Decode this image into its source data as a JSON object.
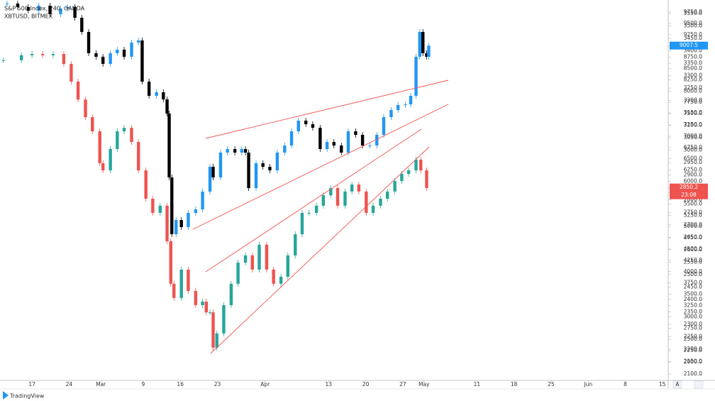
{
  "chart_data": {
    "type": "candlestick",
    "legend_lines": [
      "S&P 500 Index, 240, OANDA",
      "XBTUSD, BITMEX"
    ],
    "xlim": [
      -6.04,
      120.1
    ],
    "xticks": [
      {
        "value": 0,
        "label": "17"
      },
      {
        "value": 7,
        "label": "24"
      },
      {
        "value": 13,
        "label": "Mar"
      },
      {
        "value": 21,
        "label": "9"
      },
      {
        "value": 28,
        "label": "16"
      },
      {
        "value": 35,
        "label": "23"
      },
      {
        "value": 44,
        "label": "Apr"
      },
      {
        "value": 56,
        "label": "13"
      },
      {
        "value": 63,
        "label": "20"
      },
      {
        "value": 70,
        "label": "27"
      },
      {
        "value": 74,
        "label": "May"
      },
      {
        "value": 84,
        "label": "11"
      },
      {
        "value": 91,
        "label": "18"
      },
      {
        "value": 98,
        "label": "25"
      },
      {
        "value": 105,
        "label": "Jun"
      },
      {
        "value": 112,
        "label": "8"
      },
      {
        "value": 119,
        "label": "15"
      }
    ],
    "ylim": [
      2062.8,
      3604.2
    ],
    "yticks": [
      {
        "value": 3550,
        "label": "3550.0"
      },
      {
        "value": 3500,
        "label": "3500.0"
      },
      {
        "value": 3450,
        "label": "3450.0"
      },
      {
        "value": 3400,
        "label": "3400.0"
      },
      {
        "value": 3350,
        "label": "3350.0"
      },
      {
        "value": 3300,
        "label": "3300.0"
      },
      {
        "value": 3250,
        "label": "3250.0"
      },
      {
        "value": 3200,
        "label": "3200.0"
      },
      {
        "value": 3150,
        "label": "3150.0"
      },
      {
        "value": 3100,
        "label": "3100.0"
      },
      {
        "value": 3050,
        "label": "3050.0"
      },
      {
        "value": 3000,
        "label": "3000.0"
      },
      {
        "value": 2950,
        "label": "2950.0"
      },
      {
        "value": 2900,
        "label": "2900.0"
      },
      {
        "value": 2850,
        "label": "2850.0"
      },
      {
        "value": 2800,
        "label": "2800.0"
      },
      {
        "value": 2750,
        "label": "2750.0"
      },
      {
        "value": 2700,
        "label": "2700.0"
      },
      {
        "value": 2650,
        "label": "2650.0"
      },
      {
        "value": 2600,
        "label": "2600.0"
      },
      {
        "value": 2550,
        "label": "2550.0"
      },
      {
        "value": 2500,
        "label": "2500.0"
      },
      {
        "value": 2450,
        "label": "2450.0"
      },
      {
        "value": 2400,
        "label": "2400.0"
      },
      {
        "value": 2350,
        "label": "2350.0"
      },
      {
        "value": 2300,
        "label": "2300.0"
      },
      {
        "value": 2250,
        "label": "2250.0"
      },
      {
        "value": 2200,
        "label": "2200.0"
      },
      {
        "value": 2150,
        "label": "2150.0"
      },
      {
        "value": 2100,
        "label": "2100.0"
      }
    ],
    "y2lim": [
      1528.4,
      10017.2
    ],
    "y2ticks": [
      {
        "value": 9750,
        "label": "9750.0"
      },
      {
        "value": 9500,
        "label": "9500.0"
      },
      {
        "value": 9250,
        "label": "9250.0"
      },
      {
        "value": 9000,
        "label": "9000.0"
      },
      {
        "value": 8750,
        "label": "8750.0"
      },
      {
        "value": 8500,
        "label": "8500.0"
      },
      {
        "value": 8250,
        "label": "8250.0"
      },
      {
        "value": 8000,
        "label": "8000.0"
      },
      {
        "value": 7750,
        "label": "7750.0"
      },
      {
        "value": 7500,
        "label": "7500.0"
      },
      {
        "value": 7250,
        "label": "7250.0"
      },
      {
        "value": 7000,
        "label": "7000.0"
      },
      {
        "value": 6750,
        "label": "6750.0"
      },
      {
        "value": 6500,
        "label": "6500.0"
      },
      {
        "value": 6250,
        "label": "6250.0"
      },
      {
        "value": 6000,
        "label": "6000.0"
      },
      {
        "value": 5750,
        "label": "5750.0"
      },
      {
        "value": 5500,
        "label": "5500.0"
      },
      {
        "value": 5250,
        "label": "5250.0"
      },
      {
        "value": 5000,
        "label": "5000.0"
      },
      {
        "value": 4750,
        "label": "4750.0"
      },
      {
        "value": 4500,
        "label": "4500.0"
      },
      {
        "value": 4250,
        "label": "4250.0"
      },
      {
        "value": 4000,
        "label": "4000.0"
      },
      {
        "value": 3750,
        "label": "3750.0"
      },
      {
        "value": 3500,
        "label": "3500.0"
      },
      {
        "value": 3250,
        "label": "3250.0"
      },
      {
        "value": 3000,
        "label": "3000.0"
      },
      {
        "value": 2750,
        "label": "2750.0"
      },
      {
        "value": 2500,
        "label": "2500.0"
      },
      {
        "value": 2250,
        "label": "2250.0"
      },
      {
        "value": 2000,
        "label": "2000.0"
      }
    ],
    "grid": false,
    "series": [
      {
        "name": "S&P 500 Index",
        "axis": "y",
        "up_color": "#26a69a",
        "down_color": "#ef5350",
        "x": [
          -5.4,
          -2,
          0,
          2,
          4,
          6,
          7.4,
          8.7,
          10.1,
          11.4,
          12.8,
          13.4,
          14.8,
          16.1,
          17.4,
          18.8,
          20.1,
          21.5,
          22.8,
          24.2,
          25.5,
          26.2,
          26.8,
          28.2,
          29.5,
          30.9,
          32.2,
          32.9,
          33.6,
          34.2,
          34.9,
          36.2,
          37.6,
          38.9,
          40.3,
          41.6,
          42.9,
          44.3,
          45.6,
          47,
          48.3,
          49.7,
          51,
          52.3,
          53.7,
          55,
          56.4,
          57.7,
          59.1,
          60.4,
          61.7,
          63.1,
          64.4,
          65.8,
          67.1,
          68.5,
          69.8,
          71.1,
          72.5,
          73.4,
          74.5
        ],
        "values": [
          3362,
          3382,
          3387,
          3382,
          3387,
          3347,
          3276,
          3204,
          3133,
          3076,
          2948,
          2919,
          3005,
          3076,
          3090,
          3033,
          2919,
          2805,
          2748,
          2777,
          2634,
          2463,
          2406,
          2520,
          2434,
          2377,
          2391,
          2348,
          2348,
          2206,
          2263,
          2377,
          2463,
          2548,
          2577,
          2520,
          2620,
          2520,
          2463,
          2491,
          2577,
          2662,
          2748,
          2748,
          2777,
          2819,
          2848,
          2777,
          2834,
          2862,
          2834,
          2748,
          2777,
          2805,
          2834,
          2876,
          2905,
          2919,
          2962,
          2919,
          2848
        ]
      },
      {
        "name": "XBTUSD",
        "axis": "y2",
        "up_color": "#2196f3",
        "down_color": "#000000",
        "x": [
          -4.7,
          -2.7,
          -0.7,
          1.3,
          3.4,
          5.4,
          6.7,
          8.1,
          9.4,
          10.7,
          12.1,
          13.4,
          14.8,
          16.1,
          17.4,
          18.8,
          20.1,
          20.8,
          22.1,
          23.5,
          24.8,
          25.5,
          25.9,
          26.4,
          27.2,
          28.2,
          29.5,
          30.9,
          32.2,
          33.6,
          34.2,
          35.6,
          36.9,
          38.3,
          39.6,
          40.3,
          40.9,
          42.3,
          43.6,
          44.9,
          46.3,
          47.7,
          49,
          50.3,
          51.7,
          53,
          54.4,
          55.7,
          57,
          58.4,
          59.7,
          61.1,
          62.4,
          63.8,
          65.1,
          66.4,
          67.8,
          69.1,
          70.5,
          71.5,
          72.5,
          73.2,
          73.8,
          74.5,
          74.9
        ],
        "values": [
          9939,
          9860,
          9781,
          9891,
          9703,
          9829,
          9860,
          9624,
          9310,
          8838,
          8760,
          8602,
          8838,
          8917,
          8760,
          9074,
          9121,
          8209,
          7895,
          7974,
          7816,
          7502,
          6087,
          4830,
          5144,
          4987,
          5301,
          5380,
          5773,
          6323,
          6087,
          6637,
          6716,
          6637,
          6716,
          6637,
          5851,
          6402,
          6323,
          6244,
          6637,
          6795,
          7109,
          7345,
          7266,
          7188,
          6716,
          6873,
          6795,
          6637,
          7109,
          7030,
          6795,
          6795,
          7030,
          7423,
          7581,
          7691,
          7706,
          7895,
          8760,
          9310,
          8838,
          8760,
          9005
        ]
      }
    ],
    "price_tags": [
      {
        "label": "9007.5",
        "value": 9007.5,
        "axis": "y2",
        "color": "#2196f3"
      },
      {
        "label": "2850.2",
        "value": 2850.2,
        "axis": "y",
        "color": "#ef5350",
        "countdown": "23:08"
      }
    ],
    "scale_button": "A",
    "brand": "TradingView"
  }
}
